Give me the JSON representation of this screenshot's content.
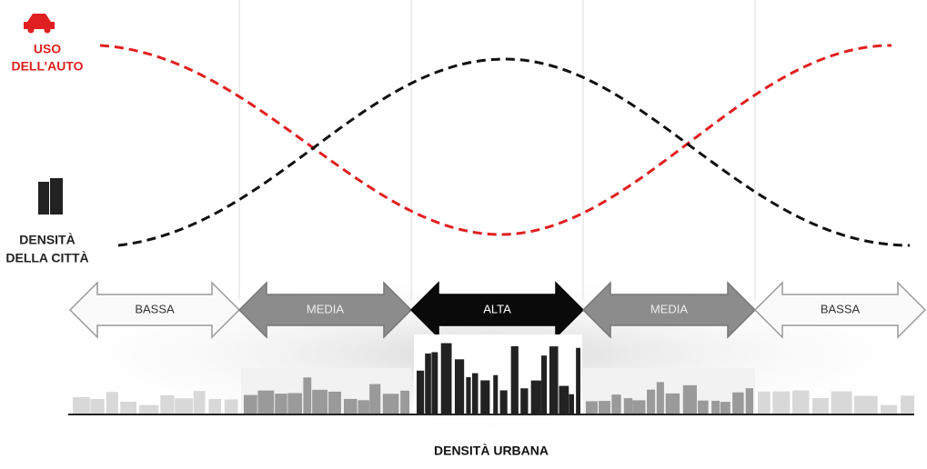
{
  "legend": {
    "car_use": [
      "USO",
      "DELL’AUTO"
    ],
    "city_density": [
      "DENSITÀ",
      "DELLA CITTÀ"
    ]
  },
  "zones": [
    "BASSA",
    "MEDIA",
    "ALTA",
    "MEDIA",
    "BASSA"
  ],
  "axis_title": "DENSITÀ URBANA"
}
